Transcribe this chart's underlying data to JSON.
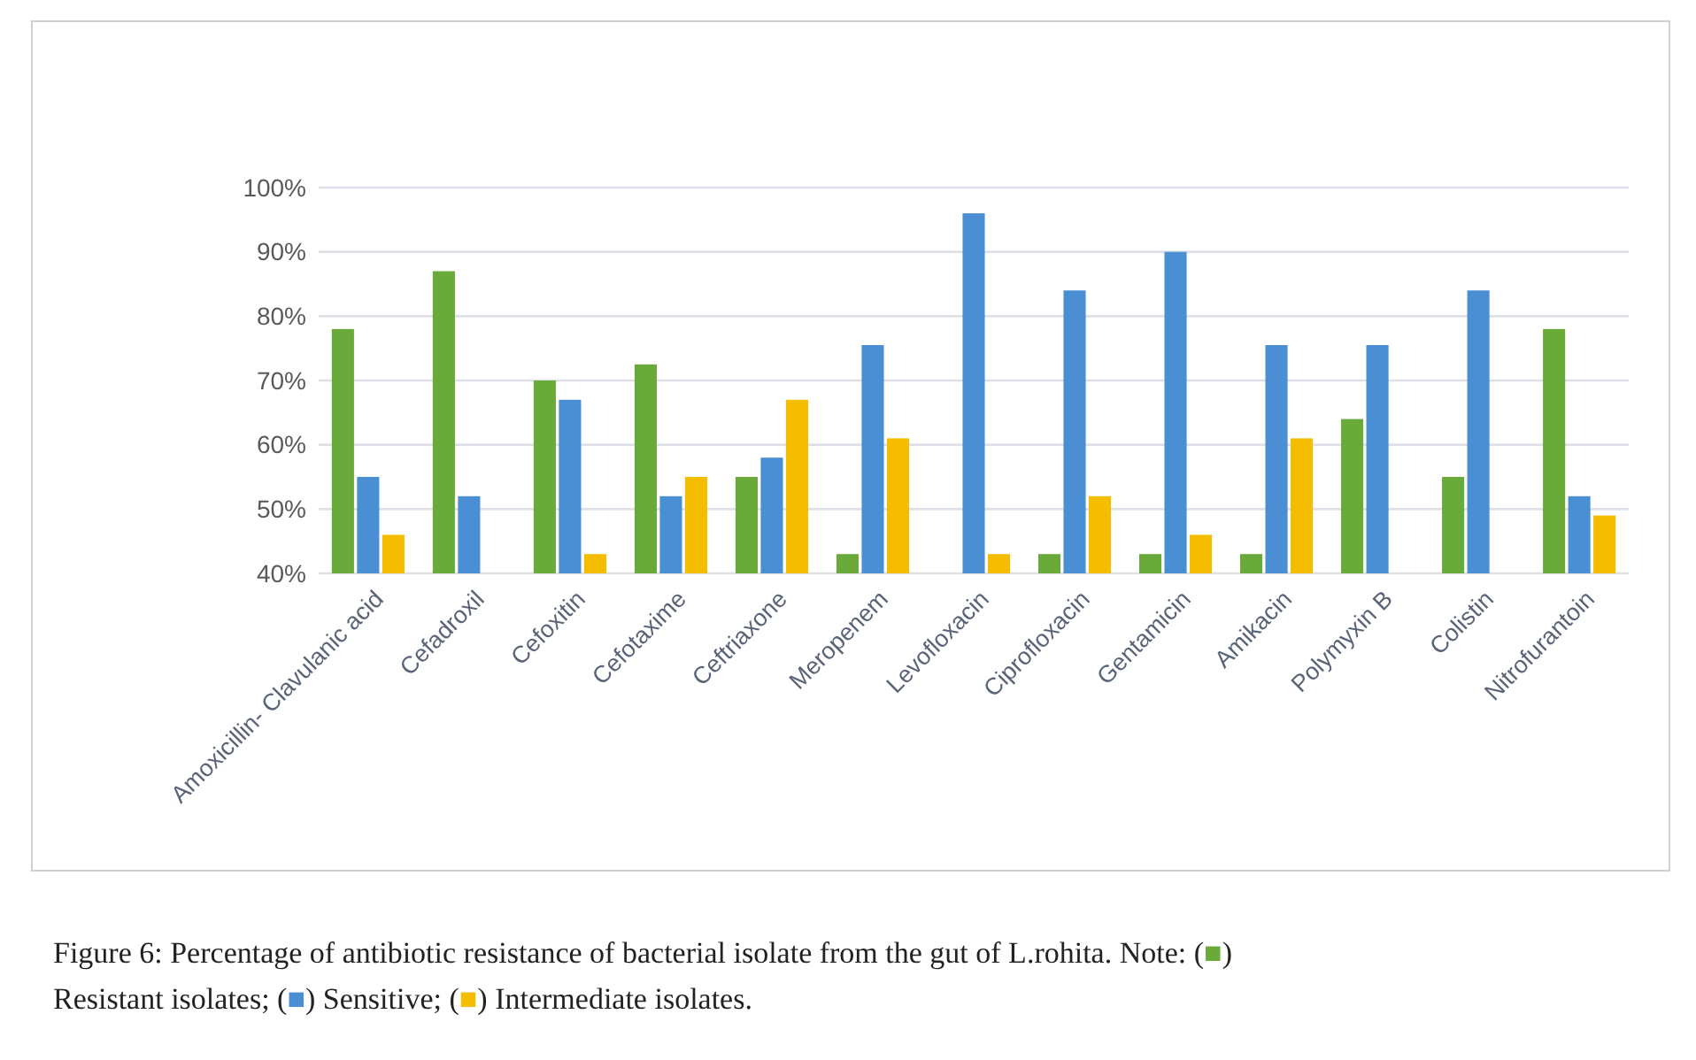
{
  "chart_data": {
    "type": "bar",
    "categories": [
      "Amoxicillin- Clavulanic acid",
      "Cefadroxil",
      "Cefoxitin",
      "Cefotaxime",
      "Ceftriaxone",
      "Meropenem",
      "Levofloxacin",
      "Ciprofloxacin",
      "Gentamicin",
      "Amikacin",
      "Polymyxin B",
      "Colistin",
      "Nitrofurantoin"
    ],
    "series": [
      {
        "color": "#6aaa3a",
        "values": [
          78,
          87,
          70,
          72.5,
          55,
          43,
          null,
          43,
          43,
          43,
          64,
          55,
          78
        ]
      },
      {
        "color": "#4a8fd4",
        "values": [
          55,
          52,
          67,
          52,
          58,
          75.5,
          96,
          84,
          90,
          75.5,
          75.5,
          84,
          52
        ]
      },
      {
        "color": "#f5bd00",
        "values": [
          46,
          null,
          43,
          55,
          67,
          61,
          43,
          52,
          46,
          61,
          null,
          null,
          49
        ]
      }
    ],
    "ylim": [
      40,
      100
    ],
    "yticks": [
      {
        "value": 40,
        "label": "40%"
      },
      {
        "value": 50,
        "label": "50%"
      },
      {
        "value": 60,
        "label": "60%"
      },
      {
        "value": 70,
        "label": "70%"
      },
      {
        "value": 80,
        "label": "80%"
      },
      {
        "value": 90,
        "label": "90%"
      },
      {
        "value": 100,
        "label": "100%"
      }
    ],
    "grid": "y",
    "annotations": [
      "Figure 6: Percentage of antibiotic resistance of bacterial isolate from the gut of L.rohita. Note: (■)",
      "Resistant isolates; (■) Sensitive; (■) Intermediate isolates."
    ]
  }
}
